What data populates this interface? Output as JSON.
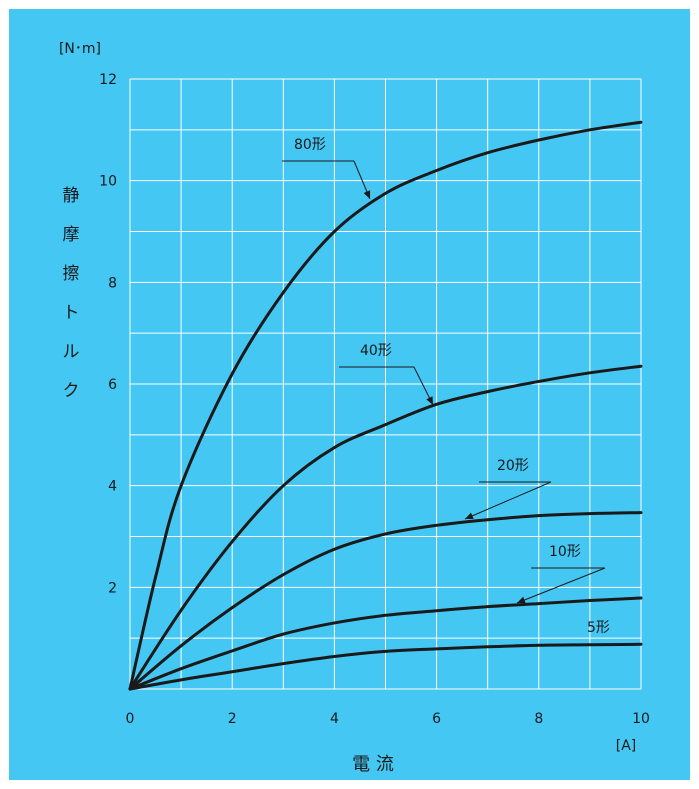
{
  "chart_data": {
    "type": "line",
    "title": "",
    "xlabel": "電 流",
    "ylabel": [
      "静",
      "摩",
      "擦",
      "ト",
      "ル",
      "ク"
    ],
    "x_unit": "[A]",
    "y_unit": "[N･m]",
    "xlim": [
      0,
      10
    ],
    "ylim": [
      0,
      12
    ],
    "x_ticks": [
      "0",
      "2",
      "4",
      "6",
      "8",
      "10"
    ],
    "y_ticks": [
      "2",
      "4",
      "6",
      "8",
      "10",
      "12"
    ],
    "grid": true,
    "background_color": "#45c7f4",
    "grid_color": "#ffffff",
    "line_color": "#1a1a1a",
    "series": [
      {
        "name": "80形",
        "x": [
          0,
          0.5,
          1,
          2,
          3,
          4,
          5,
          6,
          7,
          8,
          9,
          10
        ],
        "y": [
          0,
          2.2,
          4.0,
          6.2,
          7.8,
          9.0,
          9.75,
          10.2,
          10.55,
          10.8,
          11.0,
          11.15
        ]
      },
      {
        "name": "40形",
        "x": [
          0,
          1,
          2,
          3,
          4,
          5,
          6,
          7,
          8,
          9,
          10
        ],
        "y": [
          0,
          1.55,
          2.9,
          4.0,
          4.75,
          5.2,
          5.6,
          5.85,
          6.05,
          6.22,
          6.35
        ]
      },
      {
        "name": "20形",
        "x": [
          0,
          1,
          2,
          3,
          4,
          5,
          6,
          7,
          8,
          9,
          10
        ],
        "y": [
          0,
          0.85,
          1.6,
          2.25,
          2.75,
          3.05,
          3.22,
          3.33,
          3.41,
          3.45,
          3.47
        ]
      },
      {
        "name": "10形",
        "x": [
          0,
          1,
          2,
          3,
          4,
          5,
          6,
          7,
          8,
          9,
          10
        ],
        "y": [
          0,
          0.4,
          0.75,
          1.08,
          1.3,
          1.45,
          1.54,
          1.62,
          1.68,
          1.74,
          1.79
        ]
      },
      {
        "name": "5形",
        "x": [
          0,
          1,
          2,
          3,
          4,
          5,
          6,
          7,
          8,
          9,
          10
        ],
        "y": [
          0,
          0.18,
          0.34,
          0.5,
          0.64,
          0.74,
          0.79,
          0.83,
          0.86,
          0.87,
          0.88
        ]
      }
    ]
  }
}
